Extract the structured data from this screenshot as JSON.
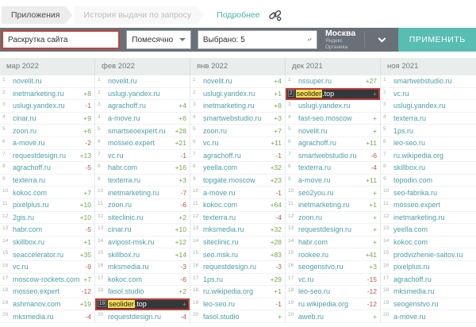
{
  "breadcrumb": {
    "tabs": [
      {
        "label": "Приложения",
        "active": true
      },
      {
        "label": "История выдачи по запросу",
        "active": false
      }
    ],
    "details_link": "Подробнее",
    "link_icon": "chain-gear-icon"
  },
  "toolbar": {
    "query_input": {
      "value": "Раскрутка сайта"
    },
    "period_select": {
      "value": "Помесячно"
    },
    "chosen_select": {
      "value": "Выбрано: 5"
    },
    "region": {
      "city": "Москва",
      "engine": "Яндекс Органика"
    },
    "apply_label": "ПРИМЕНИТЬ"
  },
  "colors": {
    "accent_teal": "#58bdb3",
    "toolbar_gray": "#6a7077",
    "input_alert_border": "#c4423b",
    "domain_link": "#4d9fa8",
    "positive_change": "#72a94e",
    "negative_change": "#c75450",
    "highlight_bg": "#33383d",
    "highlight_border": "#c23b33",
    "highlight_yellow": "#f6e054"
  },
  "table": {
    "columns": [
      {
        "header": "мар 2022",
        "rows": [
          {
            "rank": 1,
            "domain": "novelit.ru",
            "change": ""
          },
          {
            "rank": 2,
            "domain": "inetmarketing.ru",
            "change": "+8"
          },
          {
            "rank": 3,
            "domain": "uslugi.yandex.ru",
            "change": "-1"
          },
          {
            "rank": 4,
            "domain": "cinar.ru",
            "change": "+9"
          },
          {
            "rank": 5,
            "domain": "zoon.ru",
            "change": "+6"
          },
          {
            "rank": 6,
            "domain": "a-move.ru",
            "change": "-2"
          },
          {
            "rank": 7,
            "domain": "requestdesign.ru",
            "change": "+13"
          },
          {
            "rank": 8,
            "domain": "agrachoff.ru",
            "change": "-5"
          },
          {
            "rank": 9,
            "domain": "texterra.ru",
            "change": ""
          },
          {
            "rank": 10,
            "domain": "kokoc.com",
            "change": "+7"
          },
          {
            "rank": 11,
            "domain": "pixelplus.ru",
            "change": "+10"
          },
          {
            "rank": 12,
            "domain": "2gis.ru",
            "change": "+10"
          },
          {
            "rank": 13,
            "domain": "habr.com",
            "change": "-5"
          },
          {
            "rank": 14,
            "domain": "skillbox.ru",
            "change": "+1"
          },
          {
            "rank": 15,
            "domain": "seaccelerator.ru",
            "change": "+35"
          },
          {
            "rank": 16,
            "domain": "vc.ru",
            "change": "-9"
          },
          {
            "rank": 17,
            "domain": "moscow-rockets.com",
            "change": "+7"
          },
          {
            "rank": 18,
            "domain": "mosseo.expert",
            "change": "-12"
          },
          {
            "rank": 19,
            "domain": "ashmanov.com",
            "change": "+19"
          },
          {
            "rank": 20,
            "domain": "mksmedia.ru",
            "change": "-4"
          }
        ]
      },
      {
        "header": "фев 2022",
        "rows": [
          {
            "rank": 1,
            "domain": "novelit.ru",
            "change": ""
          },
          {
            "rank": 2,
            "domain": "uslugi.yandex.ru",
            "change": ""
          },
          {
            "rank": 3,
            "domain": "agrachoff.ru",
            "change": "+4"
          },
          {
            "rank": 4,
            "domain": "a-move.ru",
            "change": "+6"
          },
          {
            "rank": 5,
            "domain": "smartseoexpert.ru",
            "change": "+28"
          },
          {
            "rank": 6,
            "domain": "mosseo.expert",
            "change": "+21"
          },
          {
            "rank": 7,
            "domain": "vc.ru",
            "change": "-1"
          },
          {
            "rank": 8,
            "domain": "habr.com",
            "change": "+16"
          },
          {
            "rank": 9,
            "domain": "texterra.ru",
            "change": "+3"
          },
          {
            "rank": 10,
            "domain": "inetmarketing.ru",
            "change": "-7"
          },
          {
            "rank": 11,
            "domain": "zoon.ru",
            "change": "-6"
          },
          {
            "rank": 12,
            "domain": "siteclinic.ru",
            "change": "+2"
          },
          {
            "rank": 13,
            "domain": "cinar.ru",
            "change": "+10"
          },
          {
            "rank": 14,
            "domain": "avipost-msk.ru",
            "change": "+12"
          },
          {
            "rank": 15,
            "domain": "skillbox.ru",
            "change": "+14"
          },
          {
            "rank": 16,
            "domain": "mksmedia.ru",
            "change": "-3"
          },
          {
            "rank": 17,
            "domain": "kokoc.com",
            "change": "-6"
          },
          {
            "rank": 18,
            "domain": "fasol.studio",
            "change": "+2"
          },
          {
            "rank": 19,
            "domain": "seolider.top",
            "change": "+",
            "highlighted": true,
            "marked_part": "seolider"
          },
          {
            "rank": 20,
            "domain": "requestdesign.ru",
            "change": "-4"
          }
        ]
      },
      {
        "header": "янв 2022",
        "rows": [
          {
            "rank": 1,
            "domain": "novelit.ru",
            "change": "+4"
          },
          {
            "rank": 2,
            "domain": "uslugi.yandex.ru",
            "change": "+1"
          },
          {
            "rank": 3,
            "domain": "inetmarketing.ru",
            "change": "+8"
          },
          {
            "rank": 4,
            "domain": "smartwebstudio.ru",
            "change": "+3"
          },
          {
            "rank": 5,
            "domain": "zoon.ru",
            "change": "+7"
          },
          {
            "rank": 6,
            "domain": "vc.ru",
            "change": "+11"
          },
          {
            "rank": 7,
            "domain": "agrachoff.ru",
            "change": "-1"
          },
          {
            "rank": 8,
            "domain": "yeella.com",
            "change": "+32"
          },
          {
            "rank": 9,
            "domain": "topgate.moscow",
            "change": "+23"
          },
          {
            "rank": 10,
            "domain": "a-move.ru",
            "change": "-1"
          },
          {
            "rank": 11,
            "domain": "kokoc.com",
            "change": "+64"
          },
          {
            "rank": 12,
            "domain": "texterra.ru",
            "change": "-4"
          },
          {
            "rank": 13,
            "domain": "mksmedia.ru",
            "change": "+32"
          },
          {
            "rank": 14,
            "domain": "siteclinic.ru",
            "change": "+28"
          },
          {
            "rank": 15,
            "domain": "seo.msk.ru",
            "change": "+83"
          },
          {
            "rank": 16,
            "domain": "requestdesign.ru",
            "change": "-3"
          },
          {
            "rank": 17,
            "domain": "1ps.ru",
            "change": "+29"
          },
          {
            "rank": 18,
            "domain": "ru.wikipedia.org",
            "change": "+1"
          },
          {
            "rank": 19,
            "domain": "leo-seo.ru",
            "change": "-1"
          },
          {
            "rank": 20,
            "domain": "fasol.studio",
            "change": "+"
          }
        ]
      },
      {
        "header": "дек 2021",
        "rows": [
          {
            "rank": 1,
            "domain": "nssuper.ru",
            "change": "+27"
          },
          {
            "rank": 2,
            "domain": "seolider.top",
            "change": "+",
            "highlighted": true,
            "marked_part": "seolider"
          },
          {
            "rank": 3,
            "domain": "uslugi.yandex.ru",
            "change": ""
          },
          {
            "rank": 4,
            "domain": "fast-seo.moscow",
            "change": "+"
          },
          {
            "rank": 5,
            "domain": "novelit.ru",
            "change": "+"
          },
          {
            "rank": 6,
            "domain": "agrachoff.ru",
            "change": "+11"
          },
          {
            "rank": 7,
            "domain": "smartwebstudio.ru",
            "change": "-6"
          },
          {
            "rank": 8,
            "domain": "texterra.ru",
            "change": "-4"
          },
          {
            "rank": 9,
            "domain": "a-move.ru",
            "change": "+11"
          },
          {
            "rank": 10,
            "domain": "seo2you.ru",
            "change": "+"
          },
          {
            "rank": 11,
            "domain": "inetmarketing.ru",
            "change": "+1"
          },
          {
            "rank": 12,
            "domain": "zoon.ru",
            "change": "+"
          },
          {
            "rank": 13,
            "domain": "requestdesign.ru",
            "change": "+"
          },
          {
            "rank": 14,
            "domain": "habr.com",
            "change": "+"
          },
          {
            "rank": 15,
            "domain": "rookee.ru",
            "change": "+41"
          },
          {
            "rank": 16,
            "domain": "seogenstvo.ru",
            "change": "+3"
          },
          {
            "rank": 17,
            "domain": "vc.ru",
            "change": "-15"
          },
          {
            "rank": 18,
            "domain": "leo-seo.ru",
            "change": "-12"
          },
          {
            "rank": 19,
            "domain": "ru.wikipedia.org",
            "change": "-12"
          },
          {
            "rank": 20,
            "domain": "aweb.ru",
            "change": "+"
          }
        ]
      },
      {
        "header": "ноя 2021",
        "rows": [
          {
            "rank": 1,
            "domain": "smartwebstudio.ru",
            "change": ""
          },
          {
            "rank": 2,
            "domain": "vc.ru",
            "change": ""
          },
          {
            "rank": 3,
            "domain": "uslugi.yandex.ru",
            "change": ""
          },
          {
            "rank": 4,
            "domain": "texterra.ru",
            "change": ""
          },
          {
            "rank": 5,
            "domain": "1ps.ru",
            "change": ""
          },
          {
            "rank": 6,
            "domain": "leo-seo.ru",
            "change": ""
          },
          {
            "rank": 7,
            "domain": "ru.wikipedia.org",
            "change": ""
          },
          {
            "rank": 8,
            "domain": "skillbox.ru",
            "change": ""
          },
          {
            "rank": 9,
            "domain": "topodin.com",
            "change": ""
          },
          {
            "rank": 10,
            "domain": "seo-fabrika.ru",
            "change": ""
          },
          {
            "rank": 11,
            "domain": "mosseo.expert",
            "change": ""
          },
          {
            "rank": 12,
            "domain": "inetmarketing.ru",
            "change": ""
          },
          {
            "rank": 13,
            "domain": "yeella.com",
            "change": ""
          },
          {
            "rank": 14,
            "domain": "kokoc.com",
            "change": ""
          },
          {
            "rank": 15,
            "domain": "prodvizhenie-saitov.ru",
            "change": ""
          },
          {
            "rank": 16,
            "domain": "pixelplus.ru",
            "change": ""
          },
          {
            "rank": 17,
            "domain": "agrachoff.ru",
            "change": ""
          },
          {
            "rank": 18,
            "domain": "mksmedia.ru",
            "change": ""
          },
          {
            "rank": 19,
            "domain": "seogenstvo.ru",
            "change": ""
          },
          {
            "rank": 20,
            "domain": "a-move.ru",
            "change": ""
          }
        ]
      }
    ]
  }
}
